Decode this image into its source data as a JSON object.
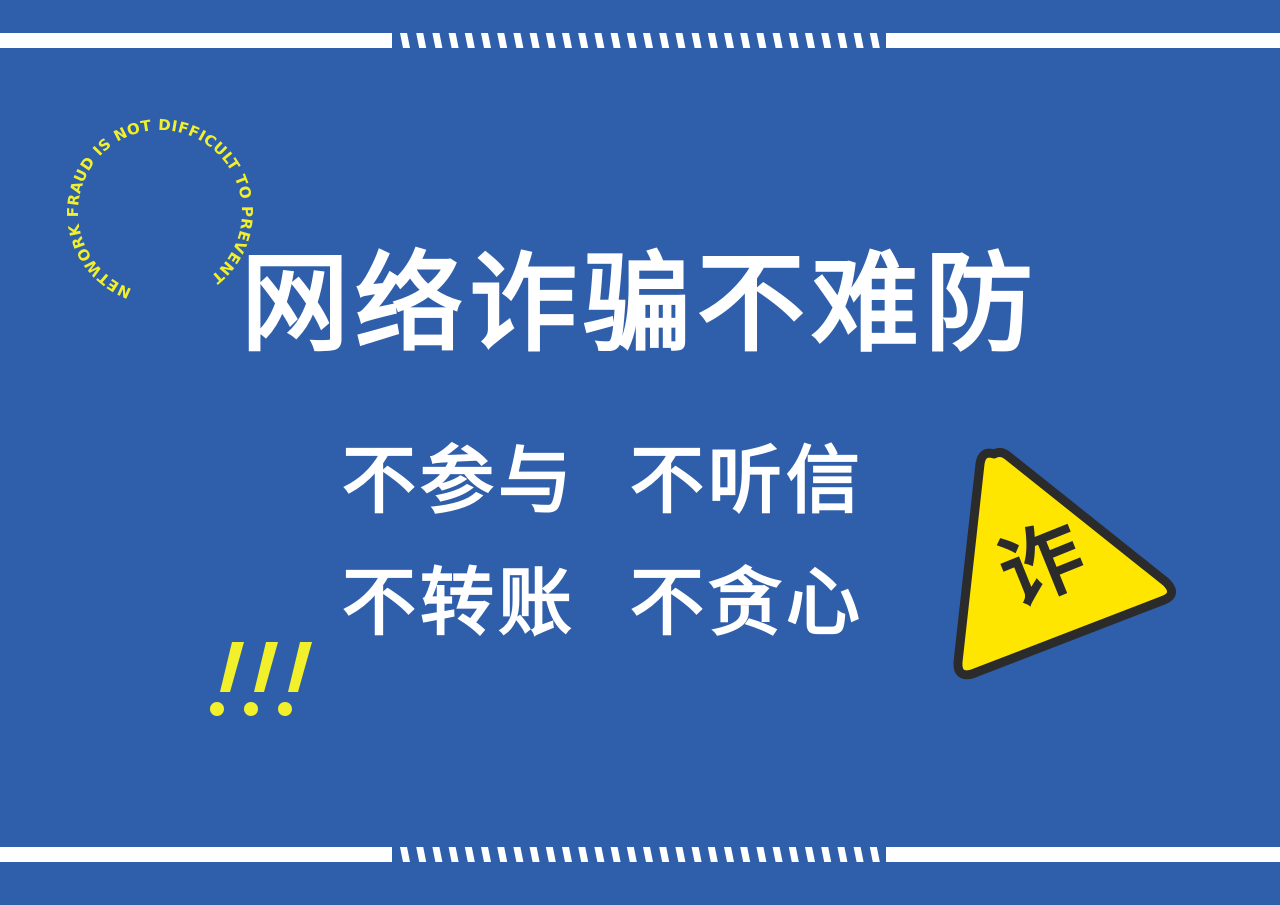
{
  "circle_text": "NETWORK FRAUD IS NOT DIFFICULT TO PREVENT",
  "title": "网络诈骗不难防",
  "slogans": [
    [
      "不参与",
      "不听信"
    ],
    [
      "不转账",
      "不贪心"
    ]
  ],
  "exclaim": "!!!",
  "warning_sign": {
    "char": "诈",
    "icon": "warning-triangle-icon"
  },
  "colors": {
    "background": "#2f5fab",
    "band": "#ffffff",
    "accent_yellow": "#f1f02a",
    "sign_yellow": "#ffe600",
    "sign_border": "#2b2b2b"
  }
}
